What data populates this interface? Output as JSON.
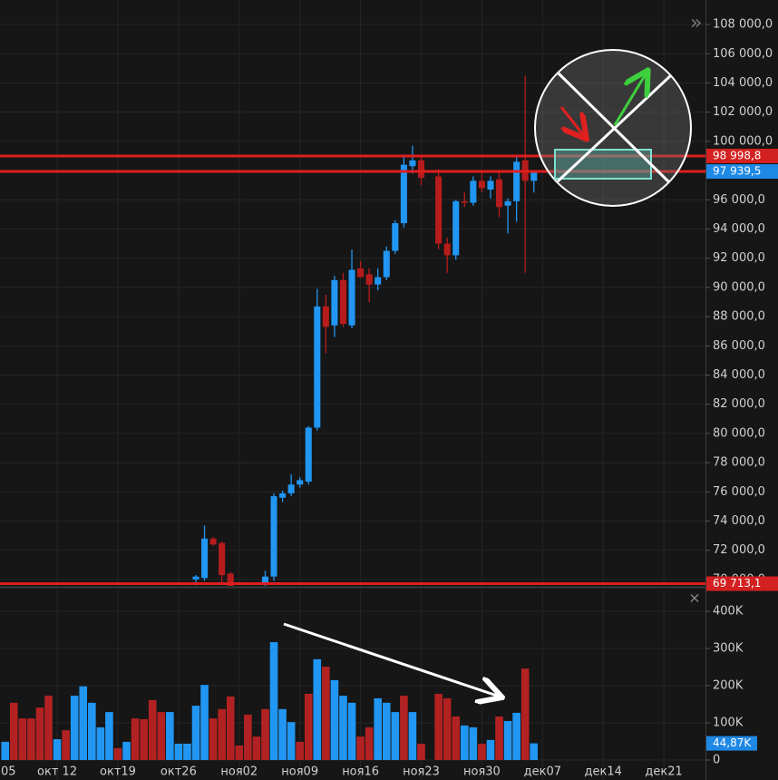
{
  "chart_data": [
    {
      "type": "candlestick",
      "xlim": [
        -0.6,
        80.8
      ],
      "ylim": [
        69560,
        109680
      ],
      "grid": true,
      "up_color": "#2196f3",
      "down_color": "#b71c1c",
      "xticks": [
        {
          "value": -1,
          "label": "05"
        },
        {
          "value": 6,
          "label": "окт 12"
        },
        {
          "value": 13,
          "label": "окт19"
        },
        {
          "value": 20,
          "label": "окт26"
        },
        {
          "value": 27,
          "label": "ноя02"
        },
        {
          "value": 34,
          "label": "ноя09"
        },
        {
          "value": 41,
          "label": "ноя16"
        },
        {
          "value": 48,
          "label": "ноя23"
        },
        {
          "value": 55,
          "label": "ноя30"
        },
        {
          "value": 62,
          "label": "дек07"
        },
        {
          "value": 69,
          "label": "дек14"
        },
        {
          "value": 76,
          "label": "дек21"
        }
      ],
      "yticks": [
        {
          "value": 70000,
          "label": "70 000,0"
        },
        {
          "value": 72000,
          "label": "72 000,0"
        },
        {
          "value": 74000,
          "label": "74 000,0"
        },
        {
          "value": 76000,
          "label": "76 000,0"
        },
        {
          "value": 78000,
          "label": "78 000,0"
        },
        {
          "value": 80000,
          "label": "80 000,0"
        },
        {
          "value": 82000,
          "label": "82 000,0"
        },
        {
          "value": 84000,
          "label": "84 000,0"
        },
        {
          "value": 86000,
          "label": "86 000,0"
        },
        {
          "value": 88000,
          "label": "88 000,0"
        },
        {
          "value": 90000,
          "label": "90 000,0"
        },
        {
          "value": 92000,
          "label": "92 000,0"
        },
        {
          "value": 94000,
          "label": "94 000,0"
        },
        {
          "value": 96000,
          "label": "96 000,0"
        },
        {
          "value": 98000,
          "label": "98 000,0"
        },
        {
          "value": 100000,
          "label": "100 000,0"
        },
        {
          "value": 102000,
          "label": "102 000,0"
        },
        {
          "value": 104000,
          "label": "104 000,0"
        },
        {
          "value": 106000,
          "label": "106 000,0"
        },
        {
          "value": 108000,
          "label": "108 000,0"
        }
      ],
      "x": [
        22,
        23,
        24,
        25,
        26,
        30,
        31,
        32,
        33,
        34,
        35,
        36,
        37,
        38,
        39,
        40,
        41,
        42,
        43,
        44,
        45,
        46,
        47,
        48,
        50,
        51,
        52,
        53,
        54,
        55,
        56,
        57,
        58,
        59,
        60,
        61
      ],
      "open": [
        70000,
        70100,
        72800,
        72500,
        70400,
        69700,
        70200,
        75600,
        75900,
        76500,
        76700,
        80400,
        88700,
        87400,
        90500,
        87400,
        91300,
        90900,
        90200,
        90700,
        92500,
        94400,
        98300,
        98700,
        97600,
        93000,
        92200,
        95900,
        95800,
        97300,
        96700,
        97400,
        95600,
        95900,
        98700,
        97300
      ],
      "high": [
        70300,
        73700,
        72900,
        72600,
        70500,
        70600,
        75900,
        76100,
        77200,
        77000,
        80500,
        89900,
        89500,
        90800,
        91000,
        92600,
        91800,
        91300,
        91300,
        92800,
        94600,
        99100,
        99700,
        99000,
        98100,
        93400,
        96000,
        96500,
        97600,
        98000,
        97600,
        97900,
        96100,
        99000,
        104500,
        98000
      ],
      "low": [
        69600,
        69900,
        72300,
        69800,
        69200,
        69500,
        69900,
        75300,
        75700,
        76300,
        76500,
        80200,
        85500,
        86600,
        87300,
        87200,
        90700,
        89000,
        89800,
        90500,
        92300,
        94100,
        97800,
        97000,
        92600,
        91000,
        91900,
        95500,
        95600,
        96500,
        96100,
        94800,
        93700,
        94500,
        91000,
        96500
      ],
      "close": [
        70200,
        72800,
        72400,
        70300,
        69400,
        70200,
        75700,
        75900,
        76500,
        76800,
        80400,
        88700,
        87300,
        90500,
        87500,
        91200,
        90700,
        90200,
        90700,
        92500,
        94400,
        98400,
        98700,
        97500,
        93000,
        92200,
        95900,
        95800,
        97300,
        96800,
        97300,
        95500,
        95900,
        98600,
        97300,
        97900
      ],
      "levels": [
        {
          "value": 98998.8,
          "label": "98 998,8",
          "color": "#e01e1e",
          "label_color": "#d32020"
        },
        {
          "value": 97939.5,
          "label": "97 939,5",
          "color": "#e01e1e",
          "label_color": "#1e88e5"
        },
        {
          "value": 69713.1,
          "label": "69 713,1",
          "color": "#e01e1e",
          "label_color": "#d32020"
        }
      ]
    },
    {
      "type": "bar",
      "xlim": [
        -0.6,
        80.8
      ],
      "ylim": [
        -53700,
        458500
      ],
      "grid": true,
      "yticks": [
        0,
        {
          "value": 100000,
          "label": "100K"
        },
        {
          "value": 200000,
          "label": "200K"
        },
        {
          "value": 300000,
          "label": "300K"
        },
        {
          "value": 400000,
          "label": "400K"
        }
      ],
      "current": {
        "value": 44870,
        "label": "44,87K",
        "color": "#1e88e5"
      },
      "series": [
        {
          "color": "#2196f3",
          "x": [
            0,
            6,
            8,
            9,
            10,
            11,
            12,
            14,
            19,
            20,
            21,
            22,
            23,
            31,
            32,
            33,
            36,
            38,
            39,
            40,
            43,
            44,
            45,
            47,
            53,
            54,
            56,
            58,
            59,
            61
          ],
          "values": [
            49000,
            56000,
            173000,
            198000,
            154000,
            88000,
            129000,
            49000,
            129000,
            44000,
            44000,
            146000,
            202000,
            317000,
            137000,
            102000,
            271000,
            215000,
            173000,
            154000,
            166000,
            154000,
            129000,
            129000,
            93000,
            88000,
            54000,
            105000,
            127000,
            44870
          ]
        },
        {
          "color": "#b22222",
          "x": [
            1,
            2,
            3,
            4,
            5,
            7,
            13,
            15,
            16,
            17,
            18,
            24,
            25,
            26,
            27,
            28,
            29,
            30,
            34,
            35,
            37,
            41,
            42,
            46,
            48,
            50,
            51,
            52,
            55,
            57,
            60
          ],
          "values": [
            154000,
            112000,
            112000,
            141000,
            173000,
            80000,
            32000,
            112000,
            110000,
            161000,
            129000,
            112000,
            137000,
            171000,
            39000,
            122000,
            63000,
            137000,
            49000,
            178000,
            251000,
            63000,
            88000,
            173000,
            44000,
            178000,
            166000,
            117000,
            44000,
            117000,
            246000
          ]
        }
      ]
    }
  ]
}
